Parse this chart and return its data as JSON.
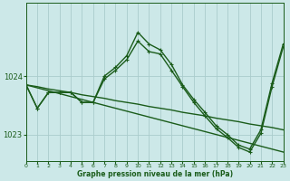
{
  "title": "Graphe pression niveau de la mer (hPa)",
  "bg": "#cce8e8",
  "grid_color": "#aacccc",
  "lc": "#1a5c1a",
  "xlim": [
    0,
    23
  ],
  "ylim": [
    1022.55,
    1025.25
  ],
  "yticks": [
    1023,
    1024
  ],
  "xticks": [
    0,
    1,
    2,
    3,
    4,
    5,
    6,
    7,
    8,
    9,
    10,
    11,
    12,
    13,
    14,
    15,
    16,
    17,
    18,
    19,
    20,
    21,
    22,
    23
  ],
  "s1x": [
    0,
    1,
    2,
    3,
    4,
    5,
    6,
    7,
    8,
    9,
    10,
    11,
    12,
    13,
    14,
    15,
    16,
    17,
    18,
    19,
    20,
    21,
    22,
    23
  ],
  "s1y": [
    1023.85,
    1023.45,
    1023.72,
    1023.72,
    1023.72,
    1023.55,
    1023.55,
    1024.0,
    1024.15,
    1024.35,
    1024.75,
    1024.55,
    1024.45,
    1024.2,
    1023.85,
    1023.6,
    1023.38,
    1023.15,
    1023.0,
    1022.82,
    1022.75,
    1023.08,
    1023.88,
    1024.55
  ],
  "s2x": [
    0,
    1,
    2,
    3,
    4,
    5,
    6,
    7,
    8,
    9,
    10,
    11,
    12,
    13,
    14,
    15,
    16,
    17,
    18,
    19,
    20,
    21,
    22,
    23
  ],
  "s2y": [
    1023.85,
    1023.45,
    1023.72,
    1023.72,
    1023.72,
    1023.55,
    1023.55,
    1023.95,
    1024.1,
    1024.28,
    1024.6,
    1024.42,
    1024.38,
    1024.1,
    1023.82,
    1023.55,
    1023.32,
    1023.1,
    1022.95,
    1022.78,
    1022.7,
    1023.02,
    1023.82,
    1024.5
  ],
  "s3x": [
    0,
    1,
    2,
    3,
    4,
    5,
    6,
    7,
    8,
    9,
    10,
    11,
    12,
    13,
    14,
    15,
    16,
    17,
    18,
    19,
    20,
    21,
    22,
    23
  ],
  "s3y": [
    1023.85,
    1023.82,
    1023.78,
    1023.75,
    1023.72,
    1023.68,
    1023.65,
    1023.62,
    1023.58,
    1023.55,
    1023.52,
    1023.48,
    1023.45,
    1023.42,
    1023.38,
    1023.35,
    1023.32,
    1023.28,
    1023.25,
    1023.22,
    1023.18,
    1023.15,
    1023.12,
    1023.08
  ],
  "s4x": [
    0,
    1,
    2,
    3,
    4,
    5,
    6,
    7,
    8,
    9,
    10,
    11,
    12,
    13,
    14,
    15,
    16,
    17,
    18,
    19,
    20,
    21,
    22,
    23
  ],
  "s4y": [
    1023.85,
    1023.8,
    1023.75,
    1023.7,
    1023.65,
    1023.6,
    1023.55,
    1023.5,
    1023.45,
    1023.4,
    1023.35,
    1023.3,
    1023.25,
    1023.2,
    1023.15,
    1023.1,
    1023.05,
    1023.0,
    1022.95,
    1022.9,
    1022.85,
    1022.8,
    1022.75,
    1022.7
  ]
}
